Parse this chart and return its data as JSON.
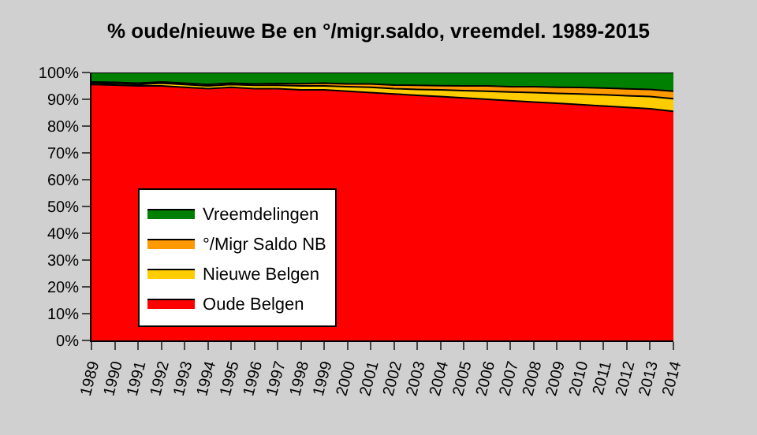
{
  "chart_data": {
    "type": "area",
    "stacked": true,
    "title": "% oude/nieuwe Be en °/migr.saldo, vreemdel. 1989-2015",
    "categories": [
      "1989",
      "1990",
      "1991",
      "1992",
      "1993",
      "1994",
      "1995",
      "1996",
      "1997",
      "1998",
      "1999",
      "2000",
      "2001",
      "2002",
      "2003",
      "2004",
      "2005",
      "2006",
      "2007",
      "2008",
      "2009",
      "2010",
      "2011",
      "2012",
      "2013",
      "2014"
    ],
    "series": [
      {
        "name": "Oude Belgen",
        "color": "#ff0000",
        "values": [
          95.5,
          95.3,
          95,
          95,
          94.5,
          94,
          94.5,
          94,
          94,
          93.5,
          93.5,
          93,
          92.5,
          92,
          91.5,
          91,
          90.5,
          90,
          89.5,
          89,
          88.5,
          88,
          87.5,
          87,
          86.5,
          85.5
        ]
      },
      {
        "name": "Nieuwe Belgen",
        "color": "#ffcc00",
        "values": [
          0.5,
          0.5,
          0.5,
          1,
          1,
          1,
          1,
          1.2,
          1.2,
          1.5,
          1.5,
          1.7,
          2,
          2,
          2.2,
          2.5,
          2.7,
          3,
          3.2,
          3.5,
          3.7,
          4,
          4.2,
          4.3,
          4.5,
          4.7
        ]
      },
      {
        "name": "°/Migr Saldo NB",
        "color": "#ff9900",
        "values": [
          0.5,
          0.5,
          0.5,
          0.5,
          0.5,
          0.5,
          0.5,
          0.5,
          0.7,
          0.8,
          1,
          1,
          1.2,
          1.3,
          1.5,
          1.6,
          1.8,
          2,
          2,
          2.2,
          2.3,
          2.4,
          2.5,
          2.6,
          2.7,
          2.8
        ]
      },
      {
        "name": "Vreemdelingen",
        "color": "#008000",
        "values": [
          3.5,
          3.7,
          4,
          3.5,
          4,
          4.5,
          4,
          4.3,
          4.1,
          4.2,
          4,
          4.3,
          4.3,
          4.7,
          4.8,
          4.9,
          5,
          5,
          5.3,
          5.3,
          5.5,
          5.6,
          5.8,
          6.1,
          6.3,
          7
        ]
      }
    ],
    "ylim": [
      0,
      100
    ],
    "yticks": [
      {
        "value": 0,
        "label": "0%"
      },
      {
        "value": 10,
        "label": "10%"
      },
      {
        "value": 20,
        "label": "20%"
      },
      {
        "value": 30,
        "label": "30%"
      },
      {
        "value": 40,
        "label": "40%"
      },
      {
        "value": 50,
        "label": "50%"
      },
      {
        "value": 60,
        "label": "60%"
      },
      {
        "value": 70,
        "label": "70%"
      },
      {
        "value": 80,
        "label": "80%"
      },
      {
        "value": 90,
        "label": "90%"
      },
      {
        "value": 100,
        "label": "100%"
      }
    ],
    "legend": "bottom left"
  }
}
